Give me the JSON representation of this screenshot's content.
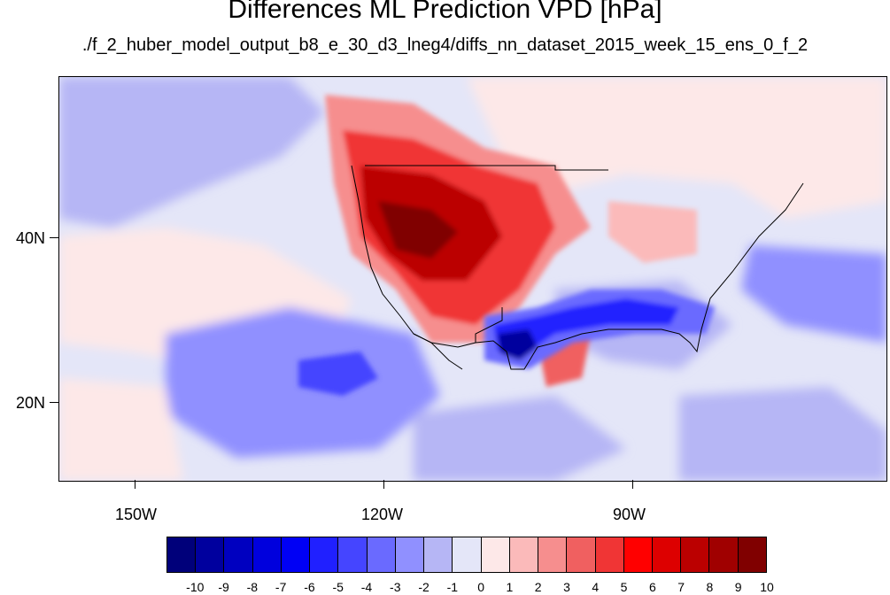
{
  "title": "Differences ML Prediction VPD [hPa]",
  "subtitle": "./f_2_huber_model_output_b8_e_30_d3_lneg4/diffs_nn_dataset_2015_week_15_ens_0_f_2",
  "lat_labels": [
    "40N",
    "20N"
  ],
  "lon_labels": [
    "150W",
    "120W",
    "90W"
  ],
  "colorbar": {
    "labels": [
      "-10",
      "-9",
      "-8",
      "-7",
      "-6",
      "-5",
      "-4",
      "-3",
      "-2",
      "-1",
      "0",
      "1",
      "2",
      "3",
      "4",
      "5",
      "6",
      "7",
      "8",
      "9",
      "10"
    ],
    "colors": [
      "#00007a",
      "#00009e",
      "#0000c0",
      "#0000dd",
      "#0000f5",
      "#2020ff",
      "#4545ff",
      "#6a6aff",
      "#9090ff",
      "#b6b6f5",
      "#e4e6f8",
      "#fde8e8",
      "#fbbaba",
      "#f68e8e",
      "#f06060",
      "#f03535",
      "#ff0000",
      "#dd0000",
      "#bb0000",
      "#a00000",
      "#800000"
    ]
  },
  "chart_data": {
    "type": "heatmap",
    "title": "Differences ML Prediction VPD [hPa]",
    "subtitle": "./f_2_huber_model_output_b8_e_30_d3_lneg4/diffs_nn_dataset_2015_week_15_ens_0_f_2",
    "units": "hPa",
    "value_range": [
      -10,
      10
    ],
    "contour_levels": [
      -10,
      -9,
      -8,
      -7,
      -6,
      -5,
      -4,
      -3,
      -2,
      -1,
      0,
      1,
      2,
      3,
      4,
      5,
      6,
      7,
      8,
      9,
      10
    ],
    "lon_ticks": [
      "150W",
      "120W",
      "90W"
    ],
    "lat_ticks": [
      "40N",
      "20N"
    ],
    "projection": "cylindrical equidistant"
  }
}
